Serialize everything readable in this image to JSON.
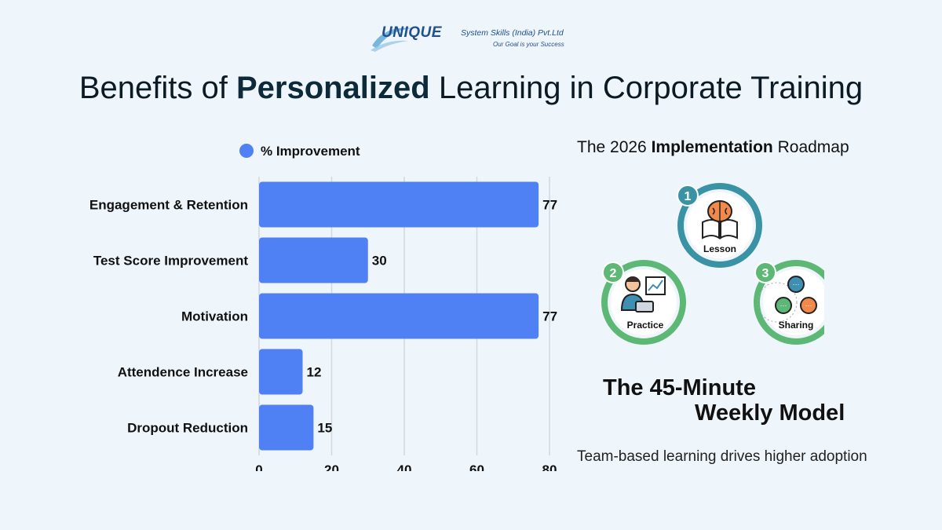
{
  "logo": {
    "brand": "UNIQUE",
    "company": "System Skills (India) Pvt.Ltd",
    "tagline": "Our Goal is your Success"
  },
  "title": {
    "prefix": "Benefits of ",
    "bold": "Personalized",
    "suffix": " Learning in Corporate Training"
  },
  "chart_data": {
    "type": "bar",
    "orientation": "horizontal",
    "categories": [
      "Engagement & Retention",
      "Test Score Improvement",
      "Motivation",
      "Attendence Increase",
      "Dropout Reduction"
    ],
    "series": [
      {
        "name": "% Improvement",
        "values": [
          77,
          30,
          77,
          12,
          15
        ]
      }
    ],
    "xlim": [
      0,
      80
    ],
    "xticks": [
      0,
      20,
      40,
      60,
      80
    ],
    "grid": true,
    "legend": "top",
    "colors": {
      "bar": "#4f81f5",
      "grid": "#d2d8de"
    }
  },
  "roadmap": {
    "title_prefix": "The 2026 ",
    "title_bold": "Implementation",
    "title_suffix": " Roadmap",
    "steps": [
      {
        "number": "1",
        "label": "Lesson",
        "icon": "brain-book-icon",
        "color": "#3a93a5"
      },
      {
        "number": "2",
        "label": "Practice",
        "icon": "person-laptop-chart-icon",
        "color": "#5cb874"
      },
      {
        "number": "3",
        "label": "Sharing",
        "icon": "chat-bubbles-icon",
        "color": "#5cb874"
      }
    ]
  },
  "model": {
    "line1": "The 45-Minute",
    "line2": "Weekly Model",
    "caption": "Team-based learning drives higher adoption"
  }
}
